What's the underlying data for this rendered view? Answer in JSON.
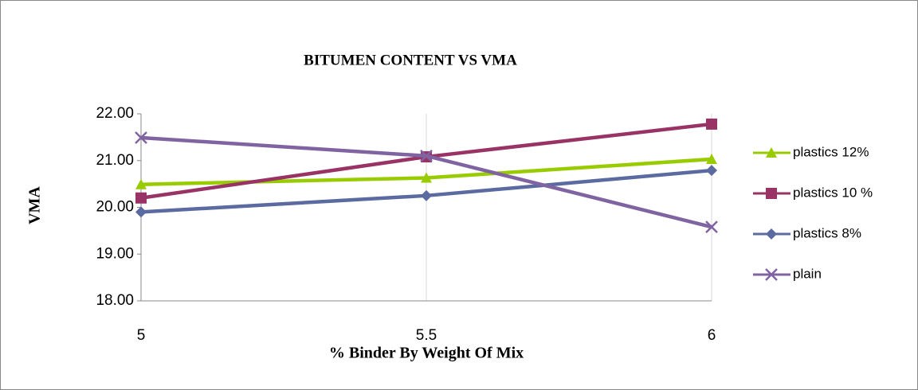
{
  "chart_data": {
    "type": "line",
    "title": "BITUMEN CONTENT VS VMA",
    "x_label": "% Binder By Weight Of Mix",
    "y_label": "VMA",
    "x": [
      5,
      5.5,
      6
    ],
    "xlim": [
      5,
      6
    ],
    "xticks": [
      5,
      5.5,
      6
    ],
    "ylim": [
      18,
      22
    ],
    "yticks": [
      {
        "value": 18,
        "label": "18.00"
      },
      {
        "value": 19,
        "label": "19.00"
      },
      {
        "value": 20,
        "label": "20.00"
      },
      {
        "value": 21,
        "label": "21.00"
      },
      {
        "value": 22,
        "label": "22.00"
      }
    ],
    "series": [
      {
        "name": "plastics 12%",
        "color": "#99cc00",
        "marker": "triangle",
        "values": [
          20.49,
          20.63,
          21.03
        ]
      },
      {
        "name": "plastics 10 %",
        "color": "#993366",
        "marker": "square",
        "values": [
          20.2,
          21.08,
          21.78
        ]
      },
      {
        "name": "plastics 8%",
        "color": "#5b6aa0",
        "marker": "diamond",
        "values": [
          19.9,
          20.25,
          20.79
        ]
      },
      {
        "name": "plain",
        "color": "#8064a2",
        "marker": "x",
        "values": [
          21.49,
          21.1,
          19.58
        ]
      }
    ],
    "legend": "right"
  }
}
